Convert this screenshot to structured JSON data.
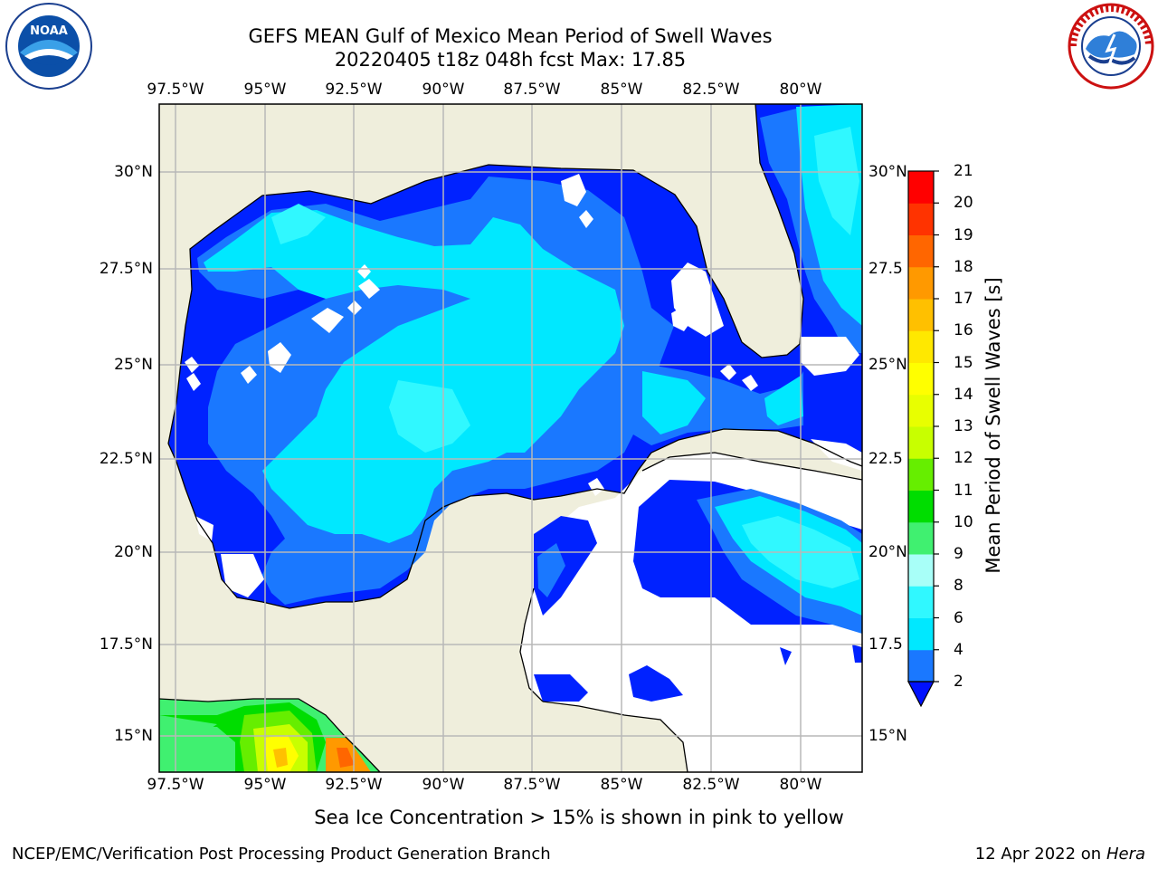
{
  "title_line1": "GEFS MEAN Gulf of Mexico Mean Period of Swell Waves",
  "title_line2": "20220405 t18z 048h fcst   Max: 17.85",
  "lon_labels": [
    "97.5°W",
    "95°W",
    "92.5°W",
    "90°W",
    "87.5°W",
    "85°W",
    "82.5°W",
    "80°W"
  ],
  "lat_labels_left": [
    "30°N",
    "27.5°N",
    "25°N",
    "22.5°N",
    "20°N",
    "17.5°N",
    "15°N"
  ],
  "lat_labels_right": [
    "30°N",
    "27.5",
    "25°N",
    "22.5",
    "20°N",
    "17.5",
    "15°N"
  ],
  "colorbar": {
    "label": "Mean Period of Swell Waves [s]",
    "ticks": [
      "2",
      "4",
      "6",
      "8",
      "9",
      "10",
      "11",
      "12",
      "13",
      "14",
      "15",
      "16",
      "17",
      "18",
      "19",
      "20",
      "21"
    ],
    "colors": [
      "#0022ff",
      "#1a78ff",
      "#00e8ff",
      "#30f8ff",
      "#a8fff8",
      "#40f070",
      "#00dd00",
      "#66ee00",
      "#c8ff00",
      "#e8ff00",
      "#ffff00",
      "#ffe800",
      "#ffc000",
      "#ff9900",
      "#ff6600",
      "#ff3300",
      "#ff0000"
    ],
    "extend_color": "#0010ff"
  },
  "colors": {
    "land": "#efeedc",
    "ocean_empty": "#ffffff",
    "grid": "#b8b8b8"
  },
  "note": "Sea Ice Concentration > 15% is shown in pink to yellow",
  "footer_left": "NCEP/EMC/Verification Post Processing Product Generation Branch",
  "footer_right_prefix": "12 Apr 2022 on ",
  "footer_right_host": "Hera",
  "logos": {
    "left": "noaa-logo",
    "right": "nws-logo"
  }
}
